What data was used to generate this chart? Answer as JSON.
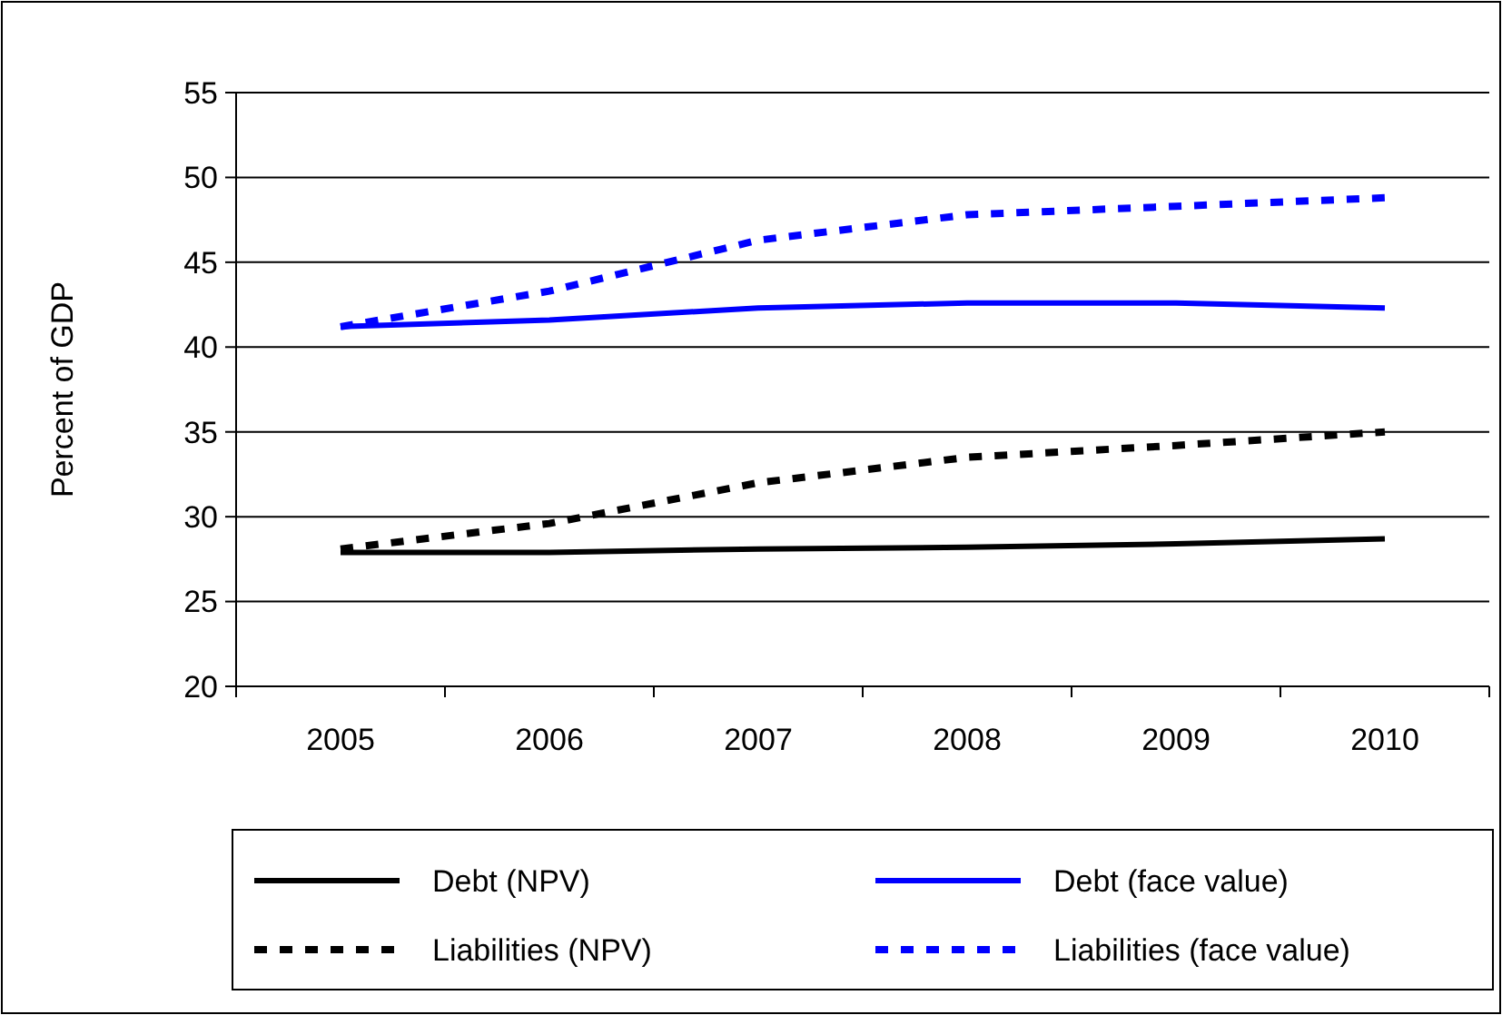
{
  "chart_data": {
    "type": "line",
    "ylabel": "Percent of GDP",
    "categories": [
      "2005",
      "2006",
      "2007",
      "2008",
      "2009",
      "2010"
    ],
    "ylim": [
      20,
      55
    ],
    "yticks": [
      20,
      25,
      30,
      35,
      40,
      45,
      50,
      55
    ],
    "grid": "y",
    "legend": "bottom",
    "marker": "none",
    "series": [
      {
        "name": "Debt (NPV)",
        "color": "#000000",
        "line_style": "solid",
        "values": [
          27.9,
          27.9,
          28.1,
          28.2,
          28.4,
          28.7
        ]
      },
      {
        "name": "Debt (face value)",
        "color": "#0000ff",
        "line_style": "solid",
        "values": [
          41.2,
          41.6,
          42.3,
          42.6,
          42.6,
          42.3
        ]
      },
      {
        "name": "Liabilities (NPV)",
        "color": "#000000",
        "line_style": "dashed",
        "values": [
          28.1,
          29.6,
          32.0,
          33.5,
          34.2,
          35.0
        ]
      },
      {
        "name": "Liabilities (face value)",
        "color": "#0000ff",
        "line_style": "dashed",
        "values": [
          41.2,
          43.3,
          46.3,
          47.8,
          48.3,
          48.8
        ]
      }
    ]
  }
}
